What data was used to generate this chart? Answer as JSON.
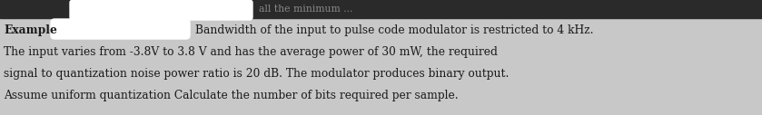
{
  "background_color": "#c8c8c8",
  "top_bar_color": "#2a2a2a",
  "white_block_color": "#ffffff",
  "lines": [
    "Bandwidth of the input to pulse code modulator is restricted to 4 kHz.",
    "The input varies from -3.8V to 3.8 V and has the average power of 30 mW, the required",
    "signal to quantization noise power ratio is 20 dB. The modulator produces binary output.",
    "Assume uniform quantization Calculate the number of bits required per sample."
  ],
  "example_label": "Example",
  "top_partial_text": "all the minimum ...",
  "font_size": 8.8,
  "fig_width": 8.39,
  "fig_height": 1.27,
  "dpi": 100
}
